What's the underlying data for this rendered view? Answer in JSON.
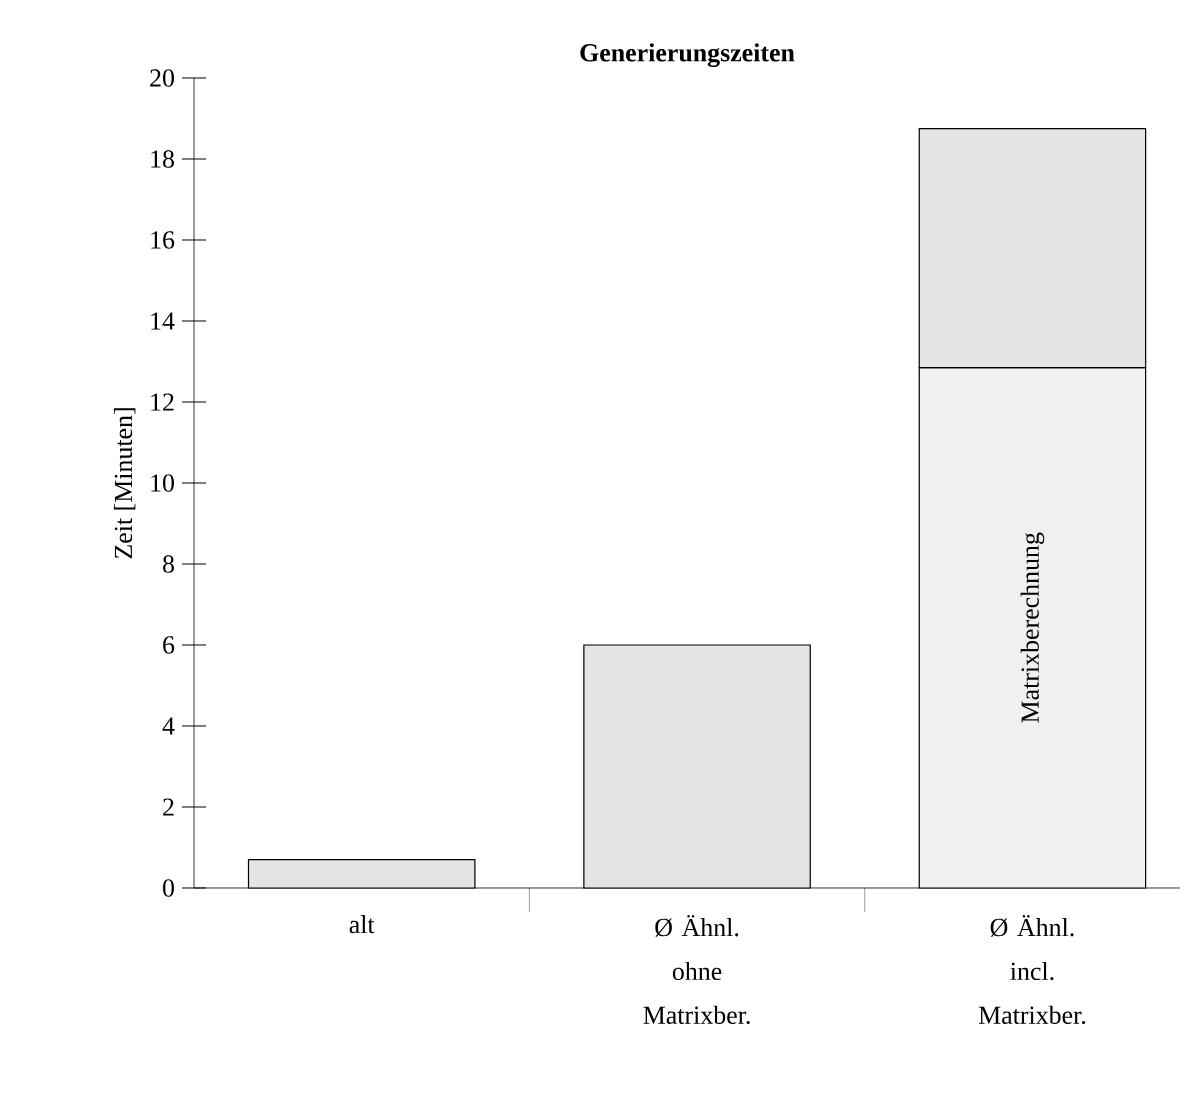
{
  "chart_data": {
    "type": "bar",
    "title": "Generierungszeiten",
    "ylabel": "Zeit [Minuten]",
    "stacked": true,
    "categories": [
      "alt",
      "Ø Ähnl. ohne Matrixber.",
      "Ø Ähnl. incl. Matrixber."
    ],
    "series": [
      {
        "name": "Matrixberechnung",
        "color": "#f0f0f0",
        "values": [
          null,
          null,
          12.85
        ]
      },
      {
        "color": "#e4e4e4",
        "values": [
          0.7,
          6,
          5.9
        ]
      }
    ],
    "ylim": [
      0,
      20
    ],
    "yticks": [
      0,
      2,
      4,
      6,
      8,
      10,
      12,
      14,
      16,
      18,
      20
    ]
  }
}
